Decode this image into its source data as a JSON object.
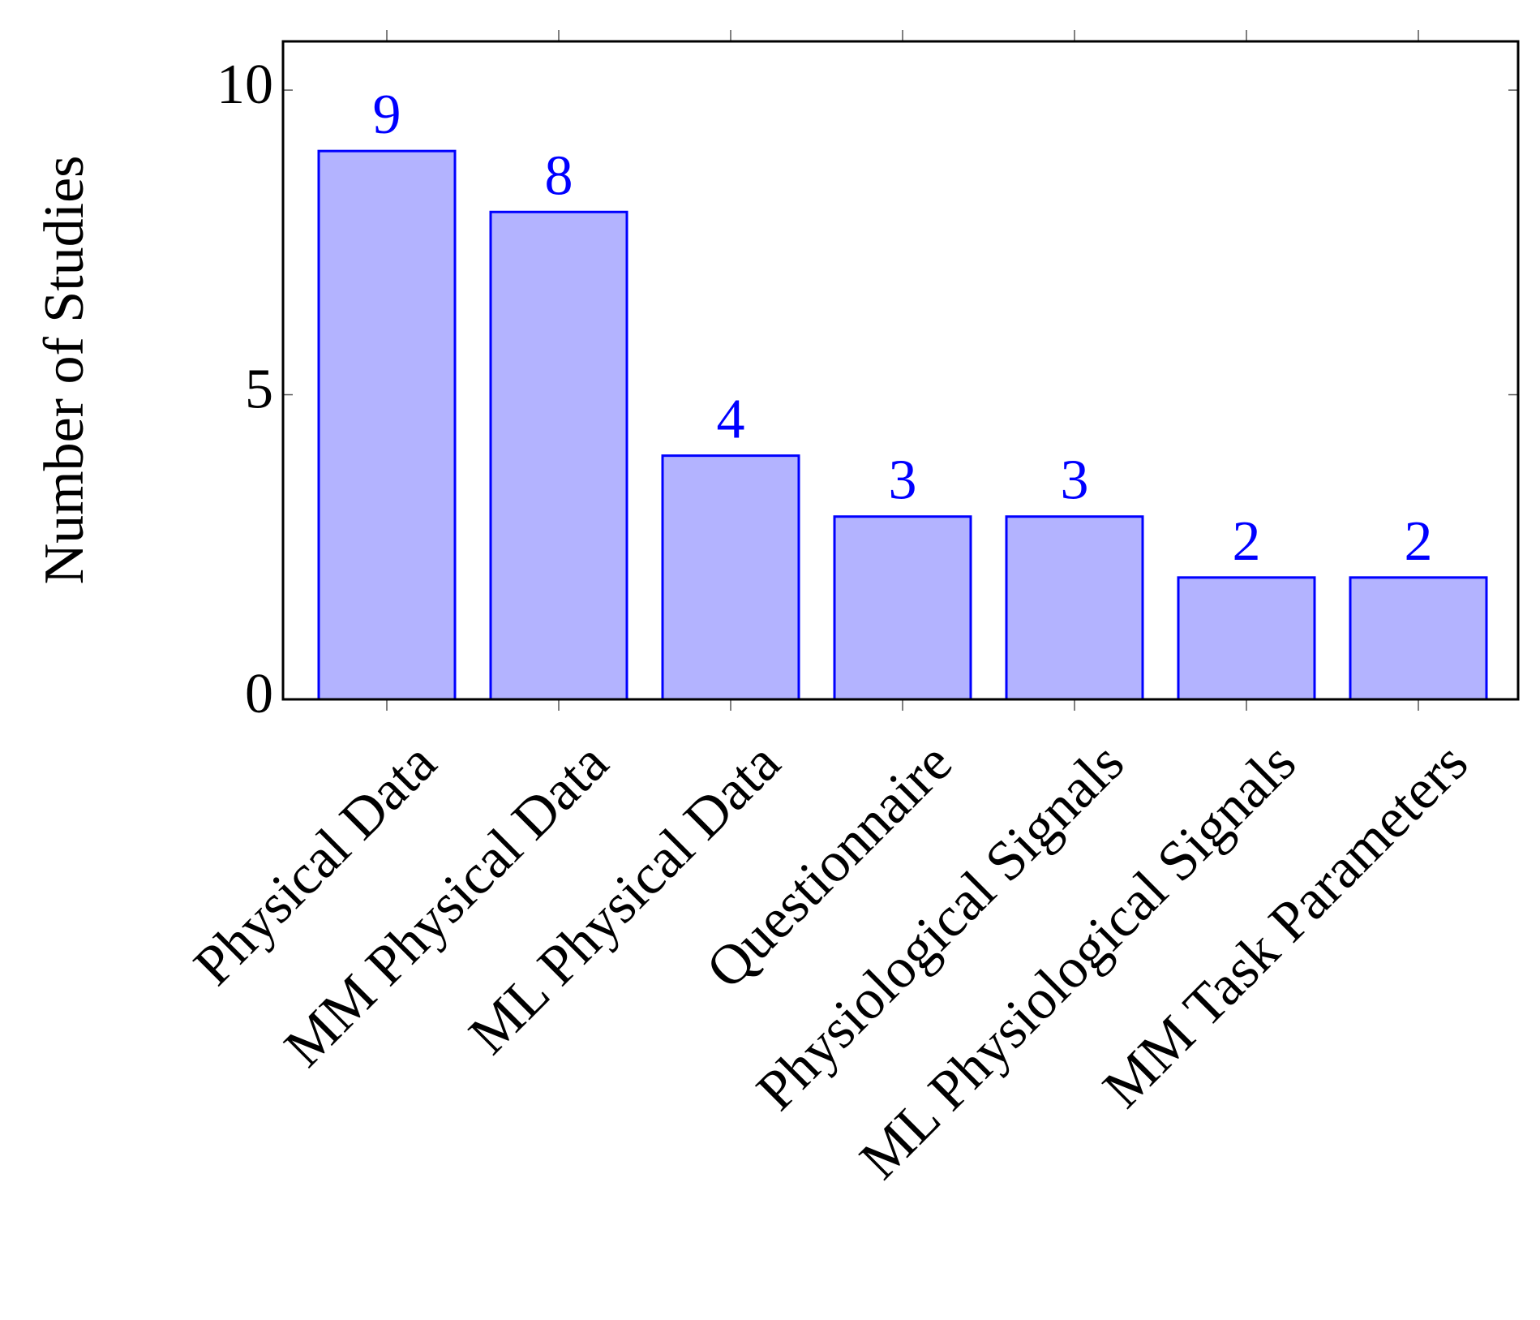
{
  "chart_data": {
    "type": "bar",
    "y_label": "Number of Studies",
    "categories": [
      "Physical Data",
      "MM Physical Data",
      "ML Physical Data",
      "Questionnaire",
      "Physiological Signals",
      "ML Physiological Signals",
      "MM Task Parameters"
    ],
    "values": [
      9,
      8,
      4,
      3,
      3,
      2,
      2
    ],
    "color": "#b3b3ff",
    "edge_color": "#0000ff",
    "label_color": "#0000ff",
    "ylim": [
      0,
      10.8
    ],
    "yticks": [
      0,
      5,
      10
    ]
  }
}
